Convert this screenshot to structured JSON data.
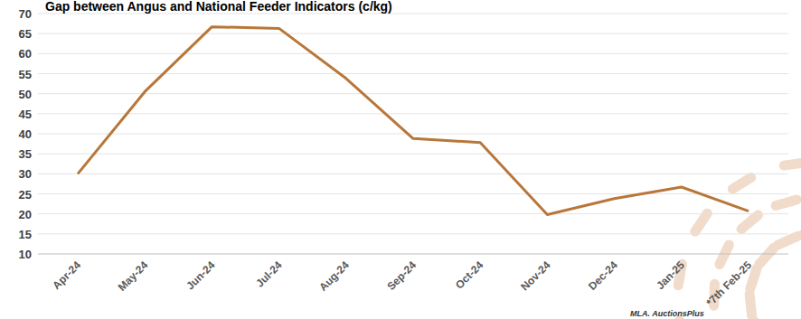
{
  "chart_data": {
    "type": "line",
    "title": "Gap between Angus and National Feeder Indicators (c/kg)",
    "categories": [
      "Apr-24",
      "May-24",
      "Jun-24",
      "Jul-24",
      "Aug-24",
      "Sep-24",
      "Oct-24",
      "Nov-24",
      "Dec-24",
      "Jan-25",
      "*7th Feb-25"
    ],
    "values": [
      30,
      50.5,
      66.7,
      66.3,
      53.8,
      38.8,
      37.8,
      19.8,
      23.8,
      26.7,
      20.7
    ],
    "color": "#b8773a",
    "ylim": [
      10,
      70
    ],
    "yticks": [
      10,
      15,
      20,
      25,
      30,
      35,
      40,
      45,
      50,
      55,
      60,
      65,
      70
    ],
    "grid": true,
    "source": "MLA. AuctionsPlus"
  }
}
